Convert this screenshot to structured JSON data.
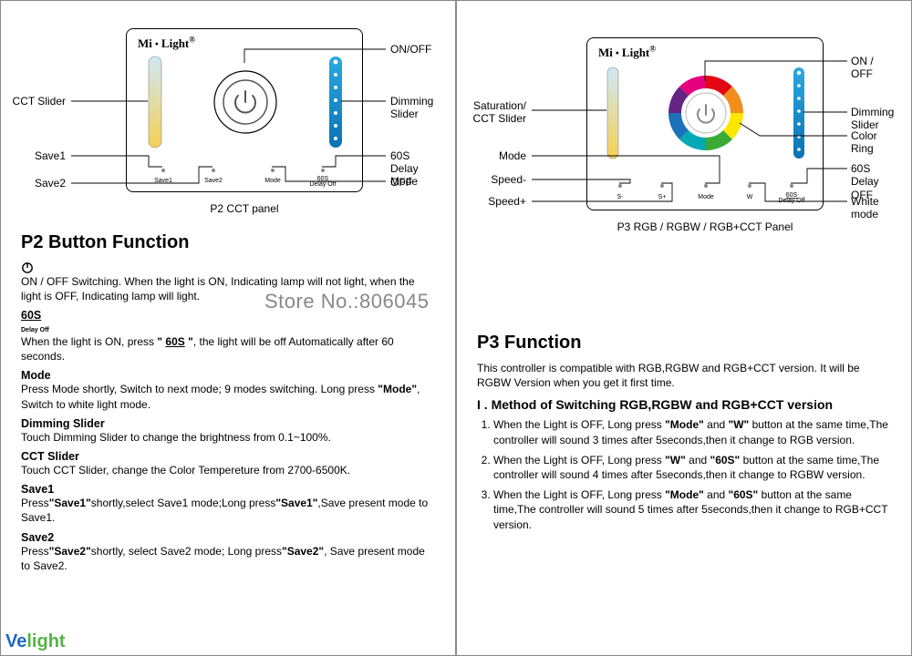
{
  "watermark": "Store No.:806045",
  "logo_watermark_a": "Ve",
  "logo_watermark_b": "light",
  "common": {
    "brand_a": "Mi",
    "brand_b": "Light",
    "colors": {
      "black": "#000000",
      "grey": "#888888",
      "slider_blue_top": "#2aa9e0",
      "slider_blue_bot": "#0b72b5",
      "cct_top": "#cfe8f7",
      "cct_bot": "#f7d154",
      "ring_red": "#e30613",
      "ring_orange": "#f18e1c",
      "ring_yellow": "#ffe600",
      "ring_green": "#3aaa35",
      "ring_cyan": "#00a9b5",
      "ring_blue": "#1d71b8",
      "ring_purple": "#662483",
      "ring_magenta": "#e6007e"
    }
  },
  "p2": {
    "caption": "P2 CCT panel",
    "labels": {
      "onoff": "ON/OFF",
      "dimming": "Dimming Slider",
      "delay": "60S Delay OFF",
      "mode": "Mode",
      "cct": "CCT Slider",
      "save1": "Save1",
      "save2": "Save2"
    },
    "buttons": {
      "save1": "Save1",
      "save2": "Save2",
      "mode": "Mode",
      "delay": "60S",
      "delay_sub": "Delay Off"
    },
    "section_title": "P2 Button Function",
    "funcs": [
      {
        "title_svg": "power",
        "title": "",
        "body": "ON / OFF Switching. When the light is ON, Indicating lamp will not light, when the light is OFF, Indicating lamp will light."
      },
      {
        "title": "60S",
        "title_sub": "Delay Off",
        "body": "When the light is ON, press \" 60S \", the light will be off Automatically after 60 seconds."
      },
      {
        "title": "Mode",
        "body": "Press Mode shortly, Switch to next mode; 9 modes switching. Long press \"Mode\", Switch to white light mode."
      },
      {
        "title": "Dimming Slider",
        "body": "Touch Dimming Slider to change the brightness from 0.1~100%."
      },
      {
        "title": "CCT Slider",
        "body": "Touch CCT Slider, change the Color Tempereture from 2700-6500K."
      },
      {
        "title": "Save1",
        "body": "Press\"Save1\"shortly,select Save1 mode;Long press\"Save1\",Save present mode to Save1."
      },
      {
        "title": "Save2",
        "body": "Press\"Save2\"shortly, select Save2 mode; Long press\"Save2\", Save present mode to Save2."
      }
    ]
  },
  "p3": {
    "caption": "P3 RGB / RGBW / RGB+CCT Panel",
    "labels": {
      "onoff": "ON / OFF",
      "dimming": "Dimming Slider",
      "colorring": "Color Ring",
      "delay": "60S Delay OFF",
      "white": "White mode",
      "sat": "Saturation/\nCCT Slider",
      "mode": "Mode",
      "speedm": "Speed-",
      "speedp": "Speed+"
    },
    "buttons": {
      "sm": "S-",
      "sp": "S+",
      "mode": "Mode",
      "w": "W",
      "delay": "60S",
      "delay_sub": "Delay Off"
    },
    "section_title": "P3 Function",
    "intro": "This controller is compatible with RGB,RGBW and RGB+CCT version. It will be RGBW Version when you get it first time.",
    "method_title": "Method of Switching RGB,RGBW and RGB+CCT version",
    "method_roman": "I .",
    "steps": [
      "When the Light is OFF, Long press \"Mode\" and \"W\" button at the same time,The controller will sound 3 times after 5seconds,then it change to RGB version.",
      "When the Light is OFF, Long press \"W\" and \"60S\" button at the same time,The controller will sound 4 times after 5seconds,then it change to RGBW version.",
      "When the Light is OFF, Long press \"Mode\" and \"60S\" button at the same time,The controller will sound 5 times after 5seconds,then it change to RGB+CCT version."
    ]
  }
}
